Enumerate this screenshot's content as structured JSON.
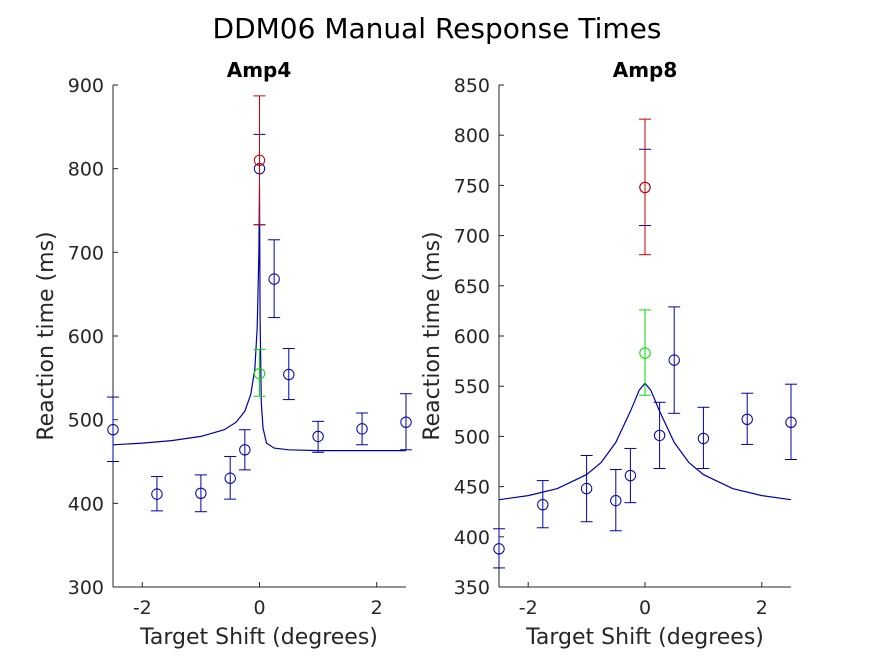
{
  "figure_title": "DDM06 Manual Response Times",
  "colors": {
    "blue": "#0000aa",
    "red": "#cc0000",
    "green": "#00dd00",
    "axis": "#262626"
  },
  "chart_data": [
    {
      "type": "scatter",
      "title": "Amp4",
      "xlabel": "Target Shift (degrees)",
      "ylabel": "Reaction time (ms)",
      "xlim": [
        -2.5,
        2.5
      ],
      "ylim": [
        300,
        900
      ],
      "xticks": [
        -2,
        0,
        2
      ],
      "xtick_labels": [
        "-2",
        "0",
        "2"
      ],
      "yticks": [
        300,
        400,
        500,
        600,
        700,
        800,
        900
      ],
      "ytick_labels": [
        "300",
        "400",
        "500",
        "600",
        "700",
        "800",
        "900"
      ],
      "series": [
        {
          "color": "blue",
          "marker": "circle",
          "points": [
            {
              "x": -2.5,
              "y": 488,
              "lo": 450,
              "hi": 527
            },
            {
              "x": -1.75,
              "y": 411,
              "lo": 391,
              "hi": 432
            },
            {
              "x": -1.0,
              "y": 412,
              "lo": 390,
              "hi": 434
            },
            {
              "x": -0.5,
              "y": 430,
              "lo": 405,
              "hi": 456
            },
            {
              "x": -0.25,
              "y": 464,
              "lo": 440,
              "hi": 488
            },
            {
              "x": 0.0,
              "y": 800,
              "lo": 733,
              "hi": 841
            },
            {
              "x": 0.25,
              "y": 668,
              "lo": 622,
              "hi": 715
            },
            {
              "x": 0.5,
              "y": 554,
              "lo": 524,
              "hi": 585
            },
            {
              "x": 1.0,
              "y": 480,
              "lo": 461,
              "hi": 498
            },
            {
              "x": 1.75,
              "y": 489,
              "lo": 470,
              "hi": 508
            },
            {
              "x": 2.5,
              "y": 497,
              "lo": 464,
              "hi": 531
            }
          ]
        },
        {
          "color": "red",
          "marker": "circle",
          "points": [
            {
              "x": 0.0,
              "y": 810,
              "lo": 733,
              "hi": 887
            }
          ]
        },
        {
          "color": "green",
          "marker": "circle",
          "points": [
            {
              "x": 0.0,
              "y": 555,
              "lo": 528,
              "hi": 584
            }
          ]
        }
      ],
      "fit": {
        "color": "blue",
        "x": [
          -2.5,
          -2.0,
          -1.5,
          -1.0,
          -0.6,
          -0.4,
          -0.25,
          -0.15,
          -0.08,
          -0.04,
          -0.01,
          0.0,
          0.01,
          0.03,
          0.06,
          0.12,
          0.25,
          0.5,
          1.0,
          2.5
        ],
        "y": [
          470,
          472,
          475,
          480,
          488,
          497,
          510,
          530,
          560,
          610,
          700,
          780,
          620,
          520,
          490,
          472,
          466,
          464,
          463,
          463
        ]
      }
    },
    {
      "type": "scatter",
      "title": "Amp8",
      "xlabel": "Target Shift (degrees)",
      "ylabel": "Reaction time (ms)",
      "xlim": [
        -2.5,
        2.5
      ],
      "ylim": [
        350,
        850
      ],
      "xticks": [
        -2,
        0,
        2
      ],
      "xtick_labels": [
        "-2",
        "0",
        "2"
      ],
      "yticks": [
        350,
        400,
        450,
        500,
        550,
        600,
        650,
        700,
        750,
        800,
        850
      ],
      "ytick_labels": [
        "350",
        "400",
        "450",
        "500",
        "550",
        "600",
        "650",
        "700",
        "750",
        "800",
        "850"
      ],
      "series": [
        {
          "color": "blue",
          "marker": "circle",
          "points": [
            {
              "x": -2.5,
              "y": 388,
              "lo": 369,
              "hi": 408
            },
            {
              "x": -1.75,
              "y": 432,
              "lo": 409,
              "hi": 456
            },
            {
              "x": -1.0,
              "y": 448,
              "lo": 415,
              "hi": 481
            },
            {
              "x": -0.5,
              "y": 436,
              "lo": 406,
              "hi": 467
            },
            {
              "x": -0.25,
              "y": 461,
              "lo": 434,
              "hi": 488
            },
            {
              "x": 0.0,
              "y": 748,
              "lo": 710,
              "hi": 786
            },
            {
              "x": 0.25,
              "y": 501,
              "lo": 468,
              "hi": 534
            },
            {
              "x": 0.5,
              "y": 576,
              "lo": 523,
              "hi": 629
            },
            {
              "x": 1.0,
              "y": 498,
              "lo": 468,
              "hi": 529
            },
            {
              "x": 1.75,
              "y": 517,
              "lo": 492,
              "hi": 543
            },
            {
              "x": 2.5,
              "y": 514,
              "lo": 477,
              "hi": 552
            }
          ]
        },
        {
          "color": "red",
          "marker": "circle",
          "points": [
            {
              "x": 0.0,
              "y": 748,
              "lo": 681,
              "hi": 816
            }
          ]
        },
        {
          "color": "green",
          "marker": "circle",
          "points": [
            {
              "x": 0.0,
              "y": 583,
              "lo": 541,
              "hi": 626
            }
          ]
        }
      ],
      "fit": {
        "color": "blue",
        "x": [
          -2.5,
          -2.0,
          -1.5,
          -1.0,
          -0.75,
          -0.5,
          -0.25,
          -0.1,
          0.0,
          0.1,
          0.25,
          0.5,
          0.75,
          1.0,
          1.5,
          2.0,
          2.5
        ],
        "y": [
          437,
          441,
          448,
          462,
          474,
          494,
          525,
          546,
          553,
          546,
          525,
          494,
          474,
          462,
          448,
          441,
          437
        ]
      }
    }
  ]
}
